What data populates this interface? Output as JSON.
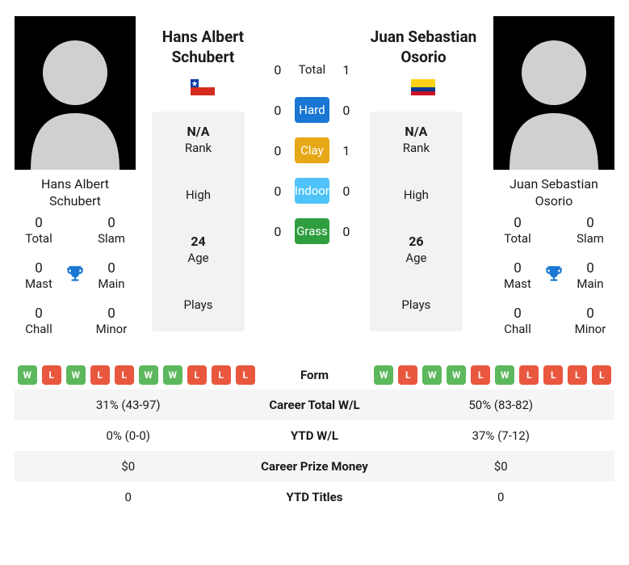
{
  "player1": {
    "name": "Hans Albert Schubert",
    "country_flag": "chile",
    "rank": "N/A",
    "high": "",
    "age": "24",
    "plays": "",
    "titles": {
      "total": "0",
      "slam": "0",
      "mast": "0",
      "main": "0",
      "chall": "0",
      "minor": "0"
    },
    "form": [
      "W",
      "L",
      "W",
      "L",
      "L",
      "W",
      "W",
      "L",
      "L",
      "L"
    ]
  },
  "player2": {
    "name": "Juan Sebastian Osorio",
    "country_flag": "colombia",
    "rank": "N/A",
    "high": "",
    "age": "26",
    "plays": "",
    "titles": {
      "total": "0",
      "slam": "0",
      "mast": "0",
      "main": "0",
      "chall": "0",
      "minor": "0"
    },
    "form": [
      "W",
      "L",
      "W",
      "W",
      "L",
      "W",
      "L",
      "L",
      "L",
      "L"
    ]
  },
  "h2h": {
    "total": {
      "p1": "0",
      "p2": "1",
      "label": "Total",
      "color": ""
    },
    "hard": {
      "p1": "0",
      "p2": "0",
      "label": "Hard",
      "color": "#1976d2"
    },
    "clay": {
      "p1": "0",
      "p2": "1",
      "label": "Clay",
      "color": "#e6a817"
    },
    "indoor": {
      "p1": "0",
      "p2": "0",
      "label": "Indoor",
      "color": "#4fc3f7"
    },
    "grass": {
      "p1": "0",
      "p2": "0",
      "label": "Grass",
      "color": "#2e9e3f"
    }
  },
  "labels": {
    "rank": "Rank",
    "high": "High",
    "age": "Age",
    "plays": "Plays",
    "total": "Total",
    "slam": "Slam",
    "mast": "Mast",
    "main": "Main",
    "chall": "Chall",
    "minor": "Minor",
    "form": "Form"
  },
  "stats_rows": [
    {
      "label": "Career Total W/L",
      "p1": "31% (43-97)",
      "p2": "50% (83-82)",
      "alt": true
    },
    {
      "label": "YTD W/L",
      "p1": "0% (0-0)",
      "p2": "37% (7-12)",
      "alt": false
    },
    {
      "label": "Career Prize Money",
      "p1": "$0",
      "p2": "$0",
      "alt": true
    },
    {
      "label": "YTD Titles",
      "p1": "0",
      "p2": "0",
      "alt": false
    }
  ],
  "trophy_color": "#1976d2"
}
